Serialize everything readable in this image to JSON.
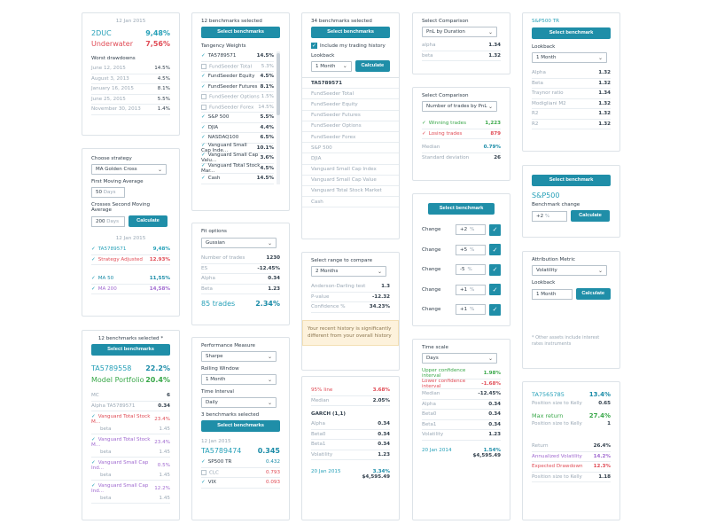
{
  "c1": {
    "date": "12 Jan 2015",
    "rows": [
      {
        "label": "2DUC",
        "value": "9,48%",
        "cls": "teal"
      },
      {
        "label": "Underwater",
        "value": "7,56%",
        "cls": "red"
      }
    ],
    "wd_title": "Worst drawdowns",
    "wd": [
      {
        "d": "June 12, 2015",
        "v": "14.5%"
      },
      {
        "d": "August 3, 2013",
        "v": "4.5%"
      },
      {
        "d": "January 16, 2015",
        "v": "8.1%"
      },
      {
        "d": "June 25, 2015",
        "v": "5.5%"
      },
      {
        "d": "November 30, 2013",
        "v": "1.4%"
      }
    ]
  },
  "c2": {
    "choose": "Choose strategy",
    "strategy": "MA Golden Cross",
    "fma": "First Moving Average",
    "fma_val": "50",
    "fma_unit": "Days",
    "csma": "Crosses Second Moving Average",
    "csma_val": "200",
    "csma_unit": "Days",
    "calc": "Calculate",
    "date": "12 Jan 2015",
    "rows": [
      {
        "l": "TA5789571",
        "v": "9,48%",
        "cls": "teal",
        "chk": true
      },
      {
        "l": "Strategy Adjusted",
        "v": "12.93%",
        "cls": "red",
        "chk": true
      },
      {
        "l": "MA 50",
        "v": "11,55%",
        "cls": "blue",
        "chk": true
      },
      {
        "l": "MA 200",
        "v": "14,58%",
        "cls": "purple",
        "chk": true
      }
    ]
  },
  "c3": {
    "title": "12 benchmarks selected *",
    "btn": "Select benchmarks",
    "r1l": "TA5789558",
    "r1v": "22.2%",
    "r2l": "Model Portfolio",
    "r2v": "20.4%",
    "stats": [
      {
        "l": "MC",
        "v": "6"
      },
      {
        "l": "Alpha TA5789571",
        "v": "0.34"
      }
    ],
    "items": [
      {
        "l": "Vanguard Total Stock M...",
        "v": "23.4%",
        "cls": "red",
        "sub": "beta",
        "sv": "1.45"
      },
      {
        "l": "Vanguard Total Stock M...",
        "v": "23.4%",
        "cls": "purple",
        "sub": "beta",
        "sv": "1.45"
      },
      {
        "l": "Vanguard Small Cap Ind...",
        "v": "0.5%",
        "cls": "purple",
        "sub": "beta",
        "sv": "1.45"
      },
      {
        "l": "Vanguard Small Cap Ind...",
        "v": "12.2%",
        "cls": "purple",
        "sub": "beta",
        "sv": "1.45"
      }
    ]
  },
  "c4": {
    "title": "12 benchmarks selected",
    "btn": "Select benchmarks",
    "tw": "Tangency Weights",
    "items": [
      {
        "l": "TA5789571",
        "v": "14.5%",
        "on": true
      },
      {
        "l": "FundSeeder Total",
        "v": "5.3%",
        "on": false
      },
      {
        "l": "FundSeeder Equity",
        "v": "4.5%",
        "on": true
      },
      {
        "l": "FundSeeder Futures",
        "v": "8.1%",
        "on": true
      },
      {
        "l": "FundSeeder Options",
        "v": "1.5%",
        "on": false
      },
      {
        "l": "FundSeeder Forex",
        "v": "14.5%",
        "on": false
      },
      {
        "l": "S&P 500",
        "v": "5.5%",
        "on": true
      },
      {
        "l": "DJIA",
        "v": "4.4%",
        "on": true
      },
      {
        "l": "NASDAQ100",
        "v": "6.5%",
        "on": true
      },
      {
        "l": "Vanguard Small Cap Inde...",
        "v": "10.1%",
        "on": true
      },
      {
        "l": "Vanguard Small Cap Valu...",
        "v": "3.6%",
        "on": true
      },
      {
        "l": "Vanguard Total Stock Mar...",
        "v": "4.5%",
        "on": true
      },
      {
        "l": "Cash",
        "v": "14.5%",
        "on": true
      }
    ]
  },
  "c5": {
    "fit": "Fit options",
    "dist": "Gussian",
    "rows": [
      {
        "l": "Number of trades",
        "v": "1230"
      },
      {
        "l": "ES",
        "v": "-12.45%"
      },
      {
        "l": "Alpha",
        "v": "0.34"
      },
      {
        "l": "Beta",
        "v": "1.23"
      }
    ],
    "trades": "85 trades",
    "tv": "2.34%"
  },
  "c6": {
    "pm": "Performance Measure",
    "pm_val": "Sharpe",
    "rw": "Rolling Window",
    "rw_val": "1 Month",
    "ti": "Time Interval",
    "ti_val": "Daily",
    "bs": "3 benchmarks selected",
    "btn": "Select benchmarks",
    "date": "12 Jan 2015",
    "main": "TA5789474",
    "mainv": "0.345",
    "items": [
      {
        "l": "SP500 TR",
        "v": "0.432",
        "cls": "blue",
        "on": true
      },
      {
        "l": "CLC",
        "v": "0.793",
        "cls": "red",
        "on": false
      },
      {
        "l": "VIX",
        "v": "0.093",
        "cls": "red",
        "on": true
      }
    ]
  },
  "c7": {
    "title": "34 benchmarks selected",
    "btn": "Select benchmarks",
    "incl": "Include my trading history",
    "lb": "Lookback",
    "lb_val": "1 Month",
    "calc": "Calculate",
    "items": [
      "TA5789571",
      "FundSeeder Total",
      "FundSeeder Equity",
      "FundSeeder Futures",
      "FundSeeder Options",
      "FundSeeder Forex",
      "S&P 500",
      "DJIA",
      "Vanguard Small Cap Index",
      "Vanguard Small Cap Value",
      "Vanguard Total Stock Market",
      "Cash"
    ]
  },
  "c8": {
    "title": "Select range to compare",
    "val": "2 Months",
    "rows": [
      {
        "l": "Anderson-Darling test",
        "v": "1.3"
      },
      {
        "l": "P-value",
        "v": "-12.32"
      },
      {
        "l": "Confidence %",
        "v": "34.23%"
      }
    ],
    "warn": "Your recent history is significantly different from your overall history"
  },
  "c9": {
    "r1l": "95% line",
    "r1v": "3.68%",
    "r2l": "Median",
    "r2v": "2.05%",
    "garch": "GARCH (1,1)",
    "rows": [
      {
        "l": "Alpha",
        "v": "0.34"
      },
      {
        "l": "Beta0",
        "v": "0.34"
      },
      {
        "l": "Beta1",
        "v": "0.34"
      },
      {
        "l": "Volatility",
        "v": "1.23"
      }
    ],
    "date": "20 Jan 2015",
    "pct": "3.34%",
    "money": "$4,595.49"
  },
  "c10": {
    "title": "Select Comparison",
    "val": "PnL by Duration",
    "rows": [
      {
        "l": "alpha",
        "v": "1.34"
      },
      {
        "l": "beta",
        "v": "1.32"
      }
    ]
  },
  "c11": {
    "title": "Select Comparison",
    "val": "Number of trades by PnL",
    "rows": [
      {
        "l": "Winning trades",
        "v": "1,223",
        "cls": "green"
      },
      {
        "l": "Losing trades",
        "v": "879",
        "cls": "red"
      }
    ],
    "r3l": "Median",
    "r3v": "0.79%",
    "r4l": "Standard deviation",
    "r4v": "26"
  },
  "c12": {
    "btn": "Select benchmark",
    "rows": [
      {
        "l": "Change",
        "v": "+2"
      },
      {
        "l": "Change",
        "v": "+5"
      },
      {
        "l": "Change",
        "v": "-5"
      },
      {
        "l": "Change",
        "v": "+1"
      },
      {
        "l": "Change",
        "v": "+1"
      }
    ]
  },
  "c13": {
    "title": "Time scale",
    "val": "Days",
    "rows": [
      {
        "l": "Upper confidence interval",
        "v": "1.98%",
        "cls": "green"
      },
      {
        "l": "Lower confidence interval",
        "v": "-1.68%",
        "cls": "red"
      },
      {
        "l": "Median",
        "v": "-12.45%",
        "cls": ""
      },
      {
        "l": "Alpha",
        "v": "0.34",
        "cls": ""
      },
      {
        "l": "Beta0",
        "v": "0.34",
        "cls": ""
      },
      {
        "l": "Beta1",
        "v": "0.34",
        "cls": ""
      },
      {
        "l": "Volatility",
        "v": "1.23",
        "cls": ""
      }
    ],
    "date": "20 Jan 2014",
    "pct": "1.54%",
    "money": "$4,595.49"
  },
  "c14": {
    "title": "S&P500 TR",
    "btn": "Select benchmark",
    "lb": "Lookback",
    "lb_val": "1 Month",
    "rows": [
      {
        "l": "Alpha",
        "v": "1.32"
      },
      {
        "l": "Beta",
        "v": "1.32"
      },
      {
        "l": "Traynor ratio",
        "v": "1.34"
      },
      {
        "l": "Modigliani M2",
        "v": "1.32"
      },
      {
        "l": "R2",
        "v": "1.32"
      },
      {
        "l": "R2",
        "v": "1.32"
      }
    ]
  },
  "c15": {
    "btn": "Select benchmark",
    "name": "S&P500",
    "bc": "Benchmark change",
    "bc_val": "+2",
    "calc": "Calculate"
  },
  "c16": {
    "am": "Attribution Metric",
    "am_val": "Volatility",
    "lb": "Lookback",
    "lb_val": "1 Month",
    "calc": "Calculate",
    "note": "* Other assets include interest rates instruments"
  },
  "c17": {
    "r1l": "TA7565785",
    "r1v": "13.4%",
    "p1l": "Position size to Kelly",
    "p1v": "0.65",
    "r2l": "Max return",
    "r2v": "27.4%",
    "p2l": "Position size to Kelly",
    "p2v": "1",
    "rows": [
      {
        "l": "Return",
        "v": "26.4%",
        "cls": ""
      },
      {
        "l": "Annualized Volatility",
        "v": "14.2%",
        "cls": "purple"
      },
      {
        "l": "Expected Drawdown",
        "v": "12.3%",
        "cls": "red"
      },
      {
        "l": "Position size to Kelly",
        "v": "1.18",
        "cls": ""
      }
    ]
  }
}
